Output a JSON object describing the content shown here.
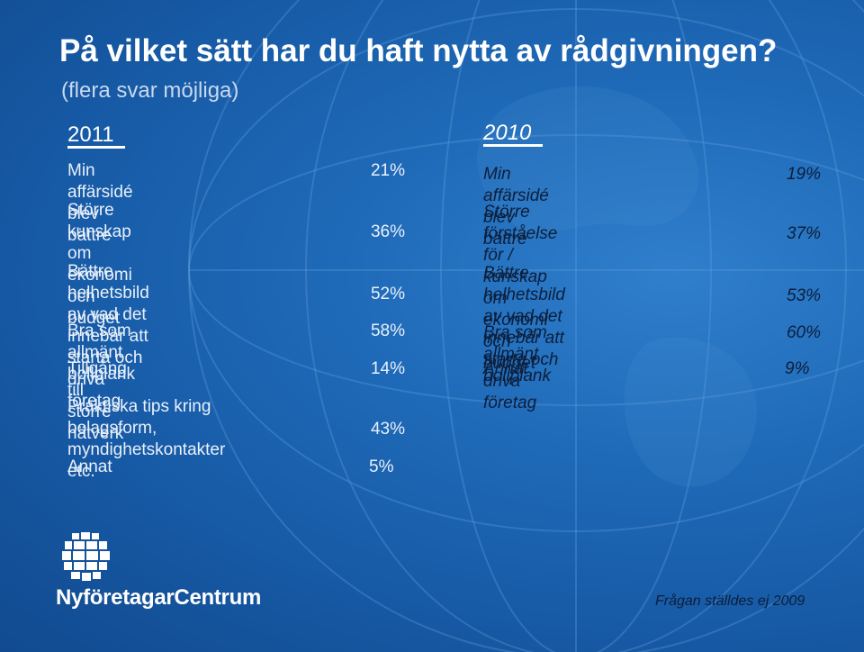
{
  "title": "På vilket sätt har du haft nytta av rådgivningen?",
  "subtitle": "(flera svar möjliga)",
  "columns": [
    {
      "year": "2011",
      "rows": [
        {
          "label": "Min affärsidé blev bättre",
          "value": "21%"
        },
        {
          "label": "Större kunskap om\nekonomi och budget",
          "value": "36%"
        },
        {
          "label": "Bättre helhetsbild av vad det\ninnebär att starta och driva företag",
          "value": "52%"
        },
        {
          "label": "Bra som allmänt bollplank",
          "value": "58%"
        },
        {
          "label": "Tillgång till större nätverk",
          "value": "14%"
        },
        {
          "label": "Praktiska tips kring bolagsform,\nmyndighetskontakter etc.",
          "value": "43%"
        },
        {
          "label": "Annat",
          "value": "5%"
        }
      ]
    },
    {
      "year": "2010",
      "rows": [
        {
          "label": "Min affärsidé blev bättre",
          "value": "19%"
        },
        {
          "label": "Större förståelse för / kunskap\nom ekonomi och budget",
          "value": "37%"
        },
        {
          "label": "Bättre helhetsbild av vad det\ninnebär att starta och driva företag",
          "value": "53%"
        },
        {
          "label": "Bra som allmänt bollplank",
          "value": "60%"
        },
        {
          "label": "Annat",
          "value": "9%"
        }
      ]
    }
  ],
  "footer_note": "Frågan ställdes ej 2009",
  "logo": {
    "text": "NyföretagarCentrum",
    "icon": "globe-logo-icon"
  },
  "colors": {
    "background": "#1a63b0",
    "text_light": "#ffffff",
    "text_dark": "#0d1e3a"
  }
}
